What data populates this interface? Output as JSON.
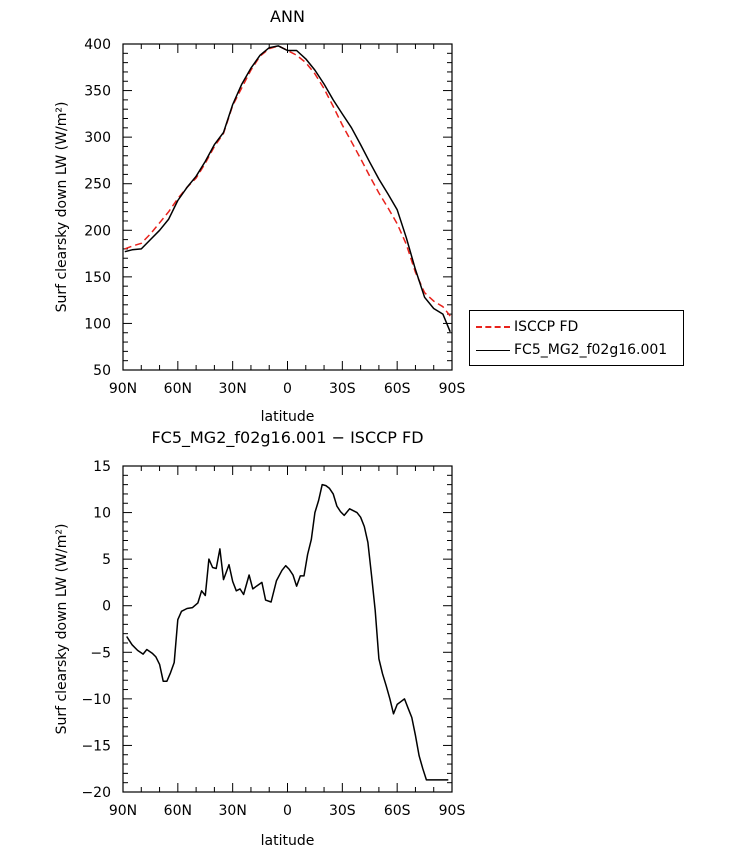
{
  "chart_data": [
    {
      "type": "line",
      "title": "ANN",
      "xlabel": "latitude",
      "ylabel": "Surf clearsky down LW (W/m²)",
      "xlim": [
        90,
        -90
      ],
      "ylim": [
        50,
        400
      ],
      "xticks": [
        90,
        60,
        30,
        0,
        -30,
        -60,
        -90
      ],
      "xtick_labels": [
        "90N",
        "60N",
        "30N",
        "0",
        "30S",
        "60S",
        "90S"
      ],
      "yticks": [
        50,
        100,
        150,
        200,
        250,
        300,
        350,
        400
      ],
      "ytick_labels": [
        "50",
        "100",
        "150",
        "200",
        "250",
        "300",
        "350",
        "400"
      ],
      "grid": false,
      "legend_position": "right",
      "series": [
        {
          "name": "ISCCP FD",
          "color": "#e8221c",
          "dash": "dashed",
          "x": [
            89,
            85,
            80,
            75,
            70,
            65,
            60,
            55,
            50,
            45,
            40,
            35,
            30,
            25,
            20,
            15,
            10,
            5,
            0,
            -5,
            -10,
            -15,
            -20,
            -25,
            -30,
            -35,
            -40,
            -45,
            -50,
            -55,
            -60,
            -65,
            -70,
            -75,
            -80,
            -85,
            -89
          ],
          "y": [
            180,
            183,
            186,
            196,
            208,
            220,
            234,
            246,
            256,
            272,
            290,
            304,
            334,
            353,
            372,
            387,
            395,
            398,
            393,
            388,
            380,
            368,
            352,
            333,
            313,
            295,
            277,
            258,
            240,
            224,
            207,
            185,
            155,
            133,
            124,
            118,
            108
          ]
        },
        {
          "name": "FC5_MG2_f02g16.001",
          "color": "#000000",
          "dash": "solid",
          "x": [
            89,
            85,
            80,
            75,
            70,
            65,
            60,
            55,
            50,
            45,
            40,
            35,
            30,
            25,
            20,
            15,
            10,
            5,
            0,
            -5,
            -10,
            -15,
            -20,
            -25,
            -30,
            -35,
            -40,
            -45,
            -50,
            -55,
            -60,
            -65,
            -70,
            -75,
            -80,
            -85,
            -89
          ],
          "y": [
            177,
            179,
            180,
            190,
            200,
            212,
            232,
            246,
            258,
            274,
            292,
            305,
            335,
            357,
            374,
            388,
            396,
            398,
            393,
            393,
            384,
            372,
            357,
            340,
            325,
            310,
            292,
            273,
            255,
            239,
            222,
            192,
            158,
            128,
            116,
            110,
            91
          ]
        }
      ]
    },
    {
      "type": "line",
      "title": "FC5_MG2_f02g16.001 − ISCCP FD",
      "xlabel": "latitude",
      "ylabel": "Surf clearsky down LW (W/m²)",
      "xlim": [
        90,
        -90
      ],
      "ylim": [
        -20,
        15
      ],
      "xticks": [
        90,
        60,
        30,
        0,
        -30,
        -60,
        -90
      ],
      "xtick_labels": [
        "90N",
        "60N",
        "30N",
        "0",
        "30S",
        "60S",
        "90S"
      ],
      "yticks": [
        -20,
        -15,
        -10,
        -5,
        0,
        5,
        10,
        15
      ],
      "ytick_labels": [
        "−20",
        "−15",
        "−10",
        "−5",
        "0",
        "5",
        "10",
        "15"
      ],
      "grid": false,
      "series": [
        {
          "color": "#000000",
          "dash": "solid",
          "x": [
            88,
            85,
            82,
            79,
            77,
            74,
            72,
            70,
            68,
            66,
            64,
            62,
            60,
            58,
            55,
            52,
            49,
            47,
            45,
            43,
            41,
            39,
            37,
            35,
            32,
            30,
            28,
            26,
            24,
            21,
            19,
            17,
            14,
            12,
            9,
            6,
            3,
            1,
            -1,
            -3,
            -5,
            -7,
            -9,
            -11,
            -13,
            -15,
            -17,
            -19,
            -21,
            -23,
            -25,
            -27,
            -29,
            -31,
            -34,
            -36,
            -38,
            -40,
            -42,
            -44,
            -46,
            -48,
            -50,
            -52,
            -54,
            -56,
            -58,
            -60,
            -62,
            -64,
            -66,
            -68,
            -70,
            -72,
            -74,
            -76,
            -78,
            -80,
            -83,
            -85,
            -87,
            -88
          ],
          "y": [
            -3.3,
            -4.2,
            -4.8,
            -5.2,
            -4.7,
            -5.1,
            -5.5,
            -6.3,
            -8.1,
            -8.1,
            -7.2,
            -6.1,
            -1.5,
            -0.6,
            -0.3,
            -0.2,
            0.3,
            1.6,
            1.1,
            5.0,
            4.1,
            4.0,
            6.1,
            2.8,
            4.4,
            2.6,
            1.6,
            1.8,
            1.2,
            3.3,
            1.8,
            2.1,
            2.5,
            0.6,
            0.4,
            2.7,
            3.8,
            4.3,
            3.9,
            3.3,
            2.1,
            3.2,
            3.2,
            5.5,
            7.1,
            10.0,
            11.3,
            13.0,
            12.9,
            12.6,
            12.0,
            10.7,
            10.1,
            9.7,
            10.4,
            10.2,
            10.0,
            9.5,
            8.5,
            6.8,
            3.2,
            -0.5,
            -5.7,
            -7.3,
            -8.6,
            -10.0,
            -11.6,
            -10.6,
            -10.3,
            -10.0,
            -11.0,
            -12.0,
            -13.9,
            -16.1,
            -17.5,
            -18.7,
            -18.7,
            -18.7,
            -18.7,
            -18.7,
            -18.7,
            -18.7
          ]
        }
      ]
    }
  ],
  "legend": {
    "items": [
      {
        "label": "ISCCP FD",
        "color": "#e8221c",
        "style": "dashed"
      },
      {
        "label": "FC5_MG2_f02g16.001",
        "color": "#000000",
        "style": "solid"
      }
    ]
  }
}
